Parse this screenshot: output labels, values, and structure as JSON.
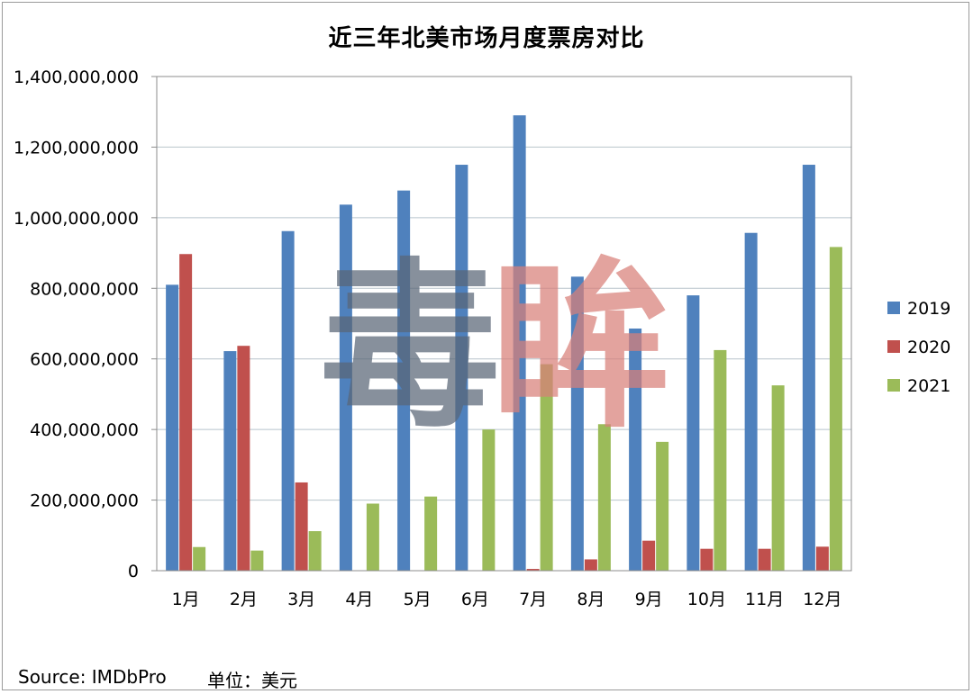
{
  "chart_data": {
    "type": "bar",
    "title": "近三年北美市场月度票房对比",
    "categories": [
      "1月",
      "2月",
      "3月",
      "4月",
      "5月",
      "6月",
      "7月",
      "8月",
      "9月",
      "10月",
      "11月",
      "12月"
    ],
    "series": [
      {
        "name": "2019",
        "color": "#4f81bd",
        "values": [
          810000000,
          622000000,
          962000000,
          1037000000,
          1077000000,
          1150000000,
          1290000000,
          833000000,
          686000000,
          780000000,
          957000000,
          1150000000
        ]
      },
      {
        "name": "2020",
        "color": "#c0504d",
        "values": [
          897000000,
          637000000,
          250000000,
          0,
          0,
          0,
          5000000,
          32000000,
          85000000,
          62000000,
          62000000,
          68000000
        ]
      },
      {
        "name": "2021",
        "color": "#9bbb59",
        "values": [
          67000000,
          57000000,
          112000000,
          190000000,
          210000000,
          400000000,
          585000000,
          415000000,
          365000000,
          625000000,
          525000000,
          917000000
        ]
      }
    ],
    "ylim": [
      0,
      1400000000
    ],
    "yticks": [
      "0",
      "200,000,000",
      "400,000,000",
      "600,000,000",
      "800,000,000",
      "1,000,000,000",
      "1,200,000,000",
      "1,400,000,000"
    ],
    "grid": true,
    "legend_position": "right"
  },
  "watermark": {
    "text1": "毒",
    "text2": "眸"
  },
  "footer": {
    "source": "Source: IMDbPro",
    "unit": "单位：美元"
  }
}
